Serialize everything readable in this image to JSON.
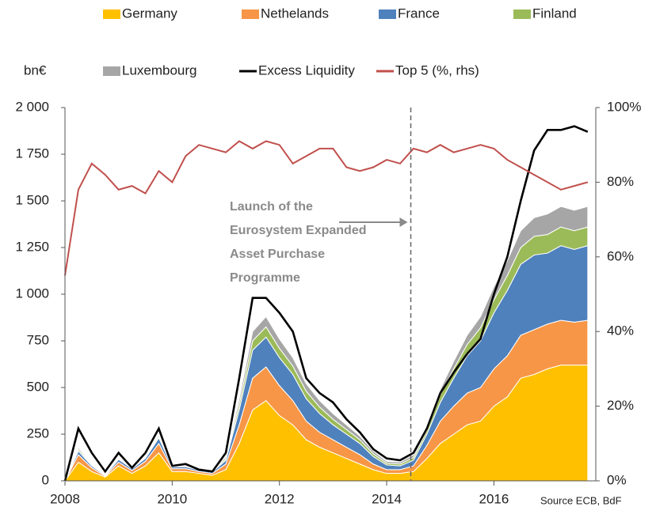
{
  "chart_data": {
    "type": "stacked_area_line",
    "y_label": "bn€",
    "source": "Source ECB, BdF",
    "annotation": {
      "lines": [
        "Launch of the",
        "Eurosystem Expanded",
        "Asset Purchase",
        "Programme"
      ],
      "x": 2014.45
    },
    "x": [
      2008,
      2008.25,
      2008.5,
      2008.75,
      2009,
      2009.25,
      2009.5,
      2009.75,
      2010,
      2010.25,
      2010.5,
      2010.75,
      2011,
      2011.25,
      2011.5,
      2011.75,
      2012,
      2012.25,
      2012.5,
      2012.75,
      2013,
      2013.25,
      2013.5,
      2013.75,
      2014,
      2014.25,
      2014.5,
      2014.75,
      2015,
      2015.25,
      2015.5,
      2015.75,
      2016,
      2016.25,
      2016.5,
      2016.75,
      2017,
      2017.25,
      2017.5,
      2017.75
    ],
    "series": [
      {
        "name": "Germany",
        "color": "#ffc000",
        "kind": "area",
        "values": [
          0,
          100,
          50,
          20,
          80,
          40,
          80,
          150,
          50,
          50,
          40,
          30,
          60,
          200,
          380,
          430,
          350,
          300,
          220,
          180,
          150,
          120,
          90,
          60,
          40,
          40,
          50,
          120,
          200,
          250,
          300,
          320,
          400,
          450,
          550,
          570,
          600,
          620,
          620,
          620
        ]
      },
      {
        "name": "Nethelands",
        "color": "#f79646",
        "kind": "area",
        "values": [
          0,
          40,
          20,
          5,
          20,
          15,
          25,
          50,
          15,
          15,
          10,
          10,
          30,
          100,
          170,
          180,
          160,
          130,
          100,
          80,
          70,
          60,
          50,
          30,
          20,
          20,
          30,
          70,
          120,
          150,
          170,
          180,
          200,
          220,
          230,
          240,
          240,
          240,
          230,
          240
        ]
      },
      {
        "name": "France",
        "color": "#4f81bd",
        "kind": "area",
        "values": [
          0,
          20,
          10,
          5,
          15,
          10,
          15,
          30,
          10,
          10,
          8,
          8,
          20,
          80,
          150,
          160,
          150,
          140,
          120,
          100,
          80,
          70,
          60,
          40,
          25,
          20,
          30,
          60,
          100,
          150,
          200,
          250,
          300,
          350,
          380,
          400,
          380,
          400,
          390,
          400
        ]
      },
      {
        "name": "Finland",
        "color": "#9bbb59",
        "kind": "area",
        "values": [
          0,
          10,
          5,
          2,
          5,
          3,
          5,
          10,
          5,
          5,
          5,
          4,
          10,
          30,
          50,
          55,
          50,
          45,
          40,
          35,
          30,
          25,
          20,
          15,
          10,
          10,
          15,
          20,
          40,
          50,
          60,
          70,
          70,
          80,
          90,
          100,
          100,
          100,
          100,
          100
        ]
      },
      {
        "name": "Luxembourg",
        "color": "#a6a6a6",
        "kind": "area",
        "values": [
          0,
          10,
          5,
          3,
          5,
          3,
          5,
          10,
          5,
          5,
          5,
          4,
          10,
          30,
          50,
          55,
          50,
          45,
          40,
          35,
          30,
          25,
          20,
          15,
          10,
          10,
          15,
          20,
          30,
          40,
          50,
          60,
          70,
          80,
          90,
          100,
          110,
          110,
          110,
          110
        ]
      },
      {
        "name": "Excess Liquidity",
        "color": "#000000",
        "kind": "line",
        "values": [
          0,
          280,
          150,
          50,
          150,
          70,
          150,
          280,
          80,
          90,
          60,
          50,
          150,
          550,
          980,
          980,
          900,
          800,
          550,
          470,
          420,
          330,
          260,
          170,
          120,
          110,
          150,
          280,
          470,
          580,
          680,
          760,
          1000,
          1200,
          1500,
          1770,
          1880,
          1880,
          1900,
          1870
        ]
      },
      {
        "name": "Top 5 (%, rhs)",
        "color": "#c0504d",
        "kind": "line",
        "axis": "y2",
        "values": [
          55,
          78,
          85,
          82,
          78,
          79,
          77,
          83,
          80,
          87,
          90,
          89,
          88,
          91,
          89,
          91,
          90,
          85,
          87,
          89,
          89,
          84,
          83,
          84,
          86,
          85,
          89,
          88,
          90,
          88,
          89,
          90,
          89,
          86,
          84,
          82,
          80,
          78,
          79,
          80
        ]
      }
    ],
    "xlim": [
      2008,
      2017.9
    ],
    "xticks": [
      2008,
      2010,
      2012,
      2014,
      2016
    ],
    "ylim": [
      0,
      2000
    ],
    "yticks": [
      0,
      250,
      500,
      750,
      {
        "value": 1000,
        "label": "1 000"
      },
      {
        "value": 1250,
        "label": "1 250"
      },
      {
        "value": 1500,
        "label": "1 500"
      },
      {
        "value": 1750,
        "label": "1 750"
      },
      {
        "value": 2000,
        "label": "2 000"
      }
    ],
    "y2lim": [
      0,
      100
    ],
    "y2ticks": [
      {
        "value": 0,
        "label": "0%"
      },
      {
        "value": 20,
        "label": "20%"
      },
      {
        "value": 40,
        "label": "40%"
      },
      {
        "value": 60,
        "label": "60%"
      },
      {
        "value": 80,
        "label": "80%"
      },
      {
        "value": 100,
        "label": "100%"
      }
    ]
  }
}
